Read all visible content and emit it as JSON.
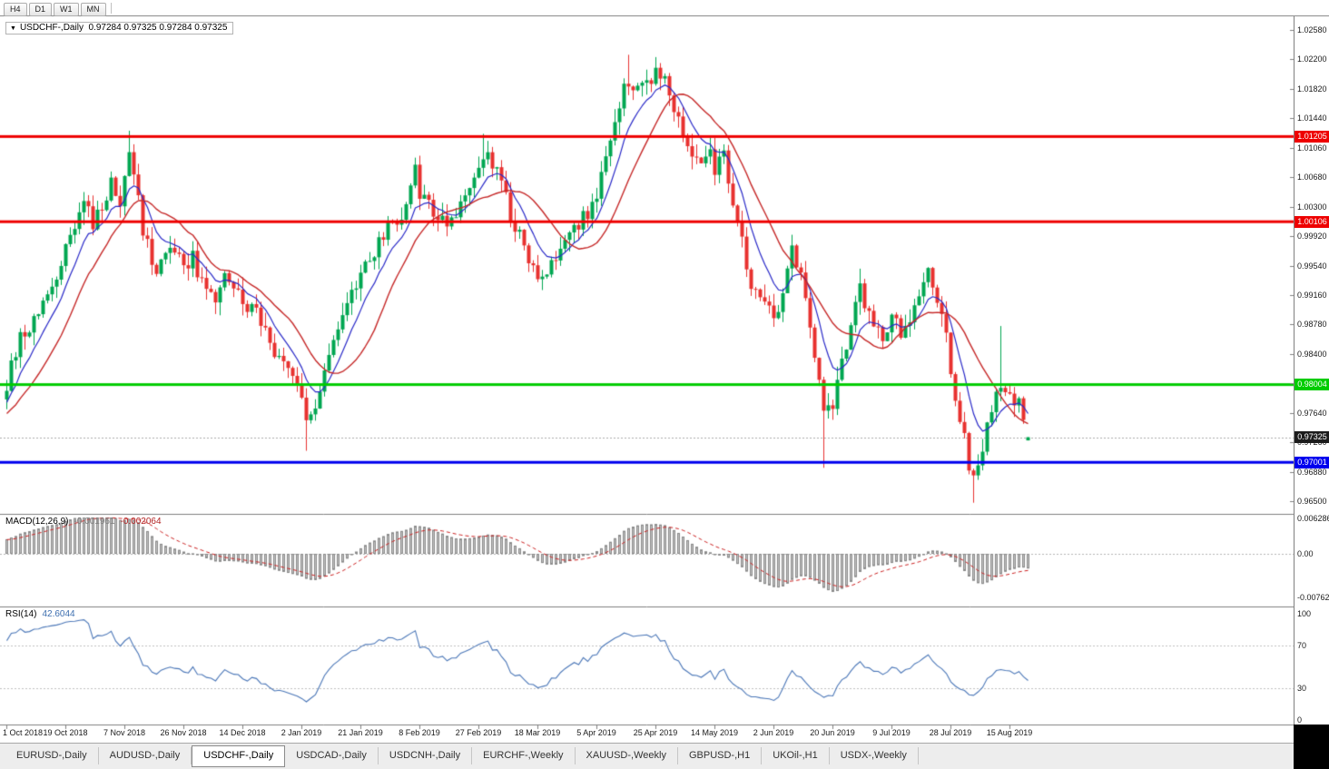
{
  "toolbar": {
    "timeframes": [
      "H4",
      "D1",
      "W1",
      "MN"
    ]
  },
  "chart": {
    "title": {
      "dropdown_icon": "▼",
      "symbol": "USDCHF-,Daily",
      "ohlc": "0.97284 0.97325 0.97284 0.97325"
    }
  },
  "chart_data": {
    "type": "candlestick",
    "symbol": "USDCHF",
    "timeframe": "Daily",
    "title": "USDCHF-,Daily",
    "x_labels": [
      "1 Oct 2018",
      "19 Oct 2018",
      "7 Nov 2018",
      "26 Nov 2018",
      "14 Dec 2018",
      "2 Jan 2019",
      "21 Jan 2019",
      "8 Feb 2019",
      "27 Feb 2019",
      "18 Mar 2019",
      "5 Apr 2019",
      "25 Apr 2019",
      "14 May 2019",
      "2 Jun 2019",
      "20 Jun 2019",
      "9 Jul 2019",
      "28 Jul 2019",
      "15 Aug 2019"
    ],
    "y_axis_labels": [
      "1.02580",
      "1.02200",
      "1.01820",
      "1.01440",
      "1.01060",
      "1.00680",
      "1.00300",
      "0.99920",
      "0.99540",
      "0.99160",
      "0.98780",
      "0.98400",
      "0.98020",
      "0.97640",
      "0.97260",
      "0.96880",
      "0.96500"
    ],
    "price_range": {
      "top": 1.0258,
      "bottom": 0.965
    },
    "levels": [
      {
        "price": 1.01205,
        "label": "1.01205",
        "color": "#ee0000"
      },
      {
        "price": 1.00106,
        "label": "1.00106",
        "color": "#ee0000"
      },
      {
        "price": 0.98004,
        "label": "0.98004",
        "color": "#00cc00"
      },
      {
        "price": 0.97001,
        "label": "0.97001",
        "color": "#0000ee"
      }
    ],
    "bid_tag": {
      "price": 0.97325,
      "label": "0.97325",
      "color": "#1c1c1c"
    },
    "last_candle": {
      "o": 0.97284,
      "h": 0.97325,
      "l": 0.97284,
      "c": 0.97325
    },
    "price_path_anchors": [
      [
        0,
        0.98
      ],
      [
        2,
        0.9845
      ],
      [
        4,
        0.987
      ],
      [
        6,
        0.9885
      ],
      [
        8,
        0.9915
      ],
      [
        11,
        0.9945
      ],
      [
        13,
        0.9975
      ],
      [
        15,
        1.0
      ],
      [
        17,
        1.004
      ],
      [
        19,
        1.0008
      ],
      [
        21,
        1.0025
      ],
      [
        23,
        1.0058
      ],
      [
        25,
        1.004
      ],
      [
        27,
        1.0095
      ],
      [
        29,
        1.005
      ],
      [
        30,
        1.0
      ],
      [
        32,
        0.996
      ],
      [
        33,
        0.9945
      ],
      [
        36,
        0.9972
      ],
      [
        39,
        0.9955
      ],
      [
        41,
        0.9965
      ],
      [
        43,
        0.993
      ],
      [
        46,
        0.991
      ],
      [
        48,
        0.9945
      ],
      [
        50,
        0.9925
      ],
      [
        52,
        0.991
      ],
      [
        55,
        0.989
      ],
      [
        58,
        0.9852
      ],
      [
        61,
        0.9836
      ],
      [
        64,
        0.9806
      ],
      [
        66,
        0.9756
      ],
      [
        68,
        0.978
      ],
      [
        70,
        0.9815
      ],
      [
        72,
        0.986
      ],
      [
        75,
        0.991
      ],
      [
        78,
        0.9948
      ],
      [
        81,
        0.997
      ],
      [
        84,
        1.0005
      ],
      [
        87,
        1.002
      ],
      [
        89,
        1.006
      ],
      [
        90,
        1.0075
      ],
      [
        91,
        1.0045
      ],
      [
        94,
        1.0026
      ],
      [
        97,
        1.001
      ],
      [
        100,
        1.0026
      ],
      [
        103,
        1.006
      ],
      [
        105,
        1.01
      ],
      [
        108,
        1.008
      ],
      [
        111,
        1.0022
      ],
      [
        114,
        0.998
      ],
      [
        117,
        0.993
      ],
      [
        120,
        0.9955
      ],
      [
        123,
        0.998
      ],
      [
        126,
        1.0005
      ],
      [
        128,
        1.0025
      ],
      [
        130,
        1.0045
      ],
      [
        132,
        1.009
      ],
      [
        134,
        1.014
      ],
      [
        136,
        1.018
      ],
      [
        137,
        1.0195
      ],
      [
        139,
        1.0182
      ],
      [
        141,
        1.0192
      ],
      [
        143,
        1.0205
      ],
      [
        145,
        1.0195
      ],
      [
        147,
        1.016
      ],
      [
        149,
        1.012
      ],
      [
        151,
        1.009
      ],
      [
        153,
        1.008
      ],
      [
        155,
        1.0115
      ],
      [
        156,
        1.0082
      ],
      [
        158,
        1.0092
      ],
      [
        160,
        1.004
      ],
      [
        162,
        0.9985
      ],
      [
        164,
        0.993
      ],
      [
        167,
        0.9908
      ],
      [
        169,
        0.989
      ],
      [
        171,
        0.992
      ],
      [
        173,
        0.997
      ],
      [
        175,
        0.9935
      ],
      [
        177,
        0.987
      ],
      [
        179,
        0.98
      ],
      [
        180,
        0.9762
      ],
      [
        182,
        0.978
      ],
      [
        184,
        0.983
      ],
      [
        186,
        0.988
      ],
      [
        188,
        0.9932
      ],
      [
        190,
        0.9885
      ],
      [
        193,
        0.9862
      ],
      [
        195,
        0.989
      ],
      [
        197,
        0.9862
      ],
      [
        199,
        0.9885
      ],
      [
        201,
        0.9912
      ],
      [
        203,
        0.994
      ],
      [
        205,
        0.9905
      ],
      [
        207,
        0.986
      ],
      [
        208,
        0.9815
      ],
      [
        210,
        0.9762
      ],
      [
        212,
        0.97
      ],
      [
        213,
        0.9682
      ],
      [
        215,
        0.972
      ],
      [
        217,
        0.9765
      ],
      [
        219,
        0.9805
      ],
      [
        221,
        0.979
      ],
      [
        223,
        0.9775
      ],
      [
        225,
        0.97325
      ]
    ],
    "wick_overrides": {
      "27": {
        "high": 1.0128
      },
      "66": {
        "low": 0.9715
      },
      "105": {
        "high": 1.0124
      },
      "137": {
        "high": 1.0226
      },
      "143": {
        "high": 1.0223
      },
      "180": {
        "low": 0.9693
      },
      "188": {
        "high": 0.995
      },
      "203": {
        "high": 0.9952
      },
      "213": {
        "low": 0.9648
      },
      "219": {
        "high": 0.9876
      }
    },
    "moving_averages": [
      {
        "type": "ema",
        "period": 8,
        "color": "#2929c8"
      },
      {
        "type": "sma",
        "period": 16,
        "color": "#c62828"
      }
    ],
    "indicators": {
      "macd": {
        "label": "MACD(12,26,9)",
        "value1": "-0.001961",
        "value2": "-0.002064",
        "axis_labels": [
          "0.006286",
          "0.00",
          "-0.00762"
        ],
        "hist_color": "#c2c2c2",
        "signal_color": "#cc2020"
      },
      "rsi": {
        "label": "RSI(14)",
        "value": "42.6044",
        "axis_labels": [
          "100",
          "70",
          "30",
          "0"
        ],
        "line_color": "#4b77b8"
      }
    },
    "colors": {
      "up": "#00a651",
      "down": "#e8312f",
      "grid_dotted": "#aaaaaa"
    }
  },
  "tabs": {
    "items": [
      {
        "label": "EURUSD-,Daily",
        "active": false
      },
      {
        "label": "AUDUSD-,Daily",
        "active": false
      },
      {
        "label": "USDCHF-,Daily",
        "active": true
      },
      {
        "label": "USDCAD-,Daily",
        "active": false
      },
      {
        "label": "USDCNH-,Daily",
        "active": false
      },
      {
        "label": "EURCHF-,Weekly",
        "active": false
      },
      {
        "label": "XAUUSD-,Weekly",
        "active": false
      },
      {
        "label": "GBPUSD-,H1",
        "active": false
      },
      {
        "label": "UKOil-,H1",
        "active": false
      },
      {
        "label": "USDX-,Weekly",
        "active": false
      }
    ]
  }
}
